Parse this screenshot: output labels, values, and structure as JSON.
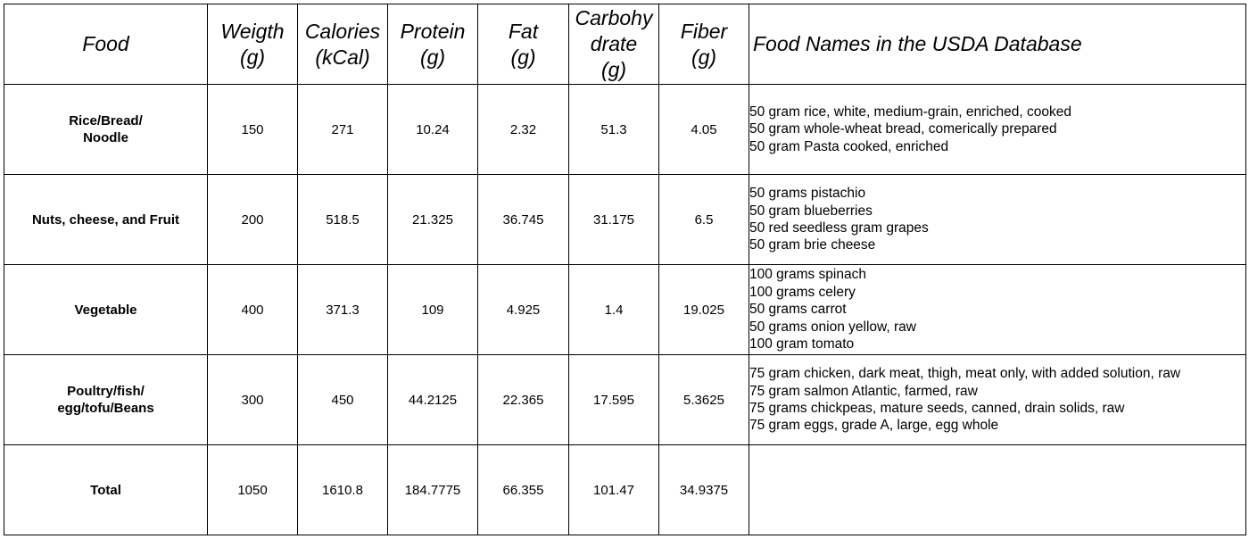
{
  "headers": {
    "food": "Food",
    "weight": "Weigth\n(g)",
    "calories": "Calories\n(kCal)",
    "protein": "Protein\n(g)",
    "fat": "Fat\n(g)",
    "carbohydrate": "Carbohy\ndrate\n(g)",
    "fiber": "Fiber\n(g)",
    "usda_names": "Food Names in the USDA Database"
  },
  "rows": [
    {
      "food": "Rice/Bread/\nNoodle",
      "weight": "150",
      "calories": "271",
      "protein": "10.24",
      "fat": "2.32",
      "carbohydrate": "51.3",
      "fiber": "4.05",
      "usda_names": [
        "50 gram rice, white, medium-grain, enriched, cooked",
        "50 gram whole-wheat bread, comerically prepared",
        "50 gram Pasta cooked, enriched"
      ]
    },
    {
      "food": "Nuts, cheese, and Fruit",
      "weight": "200",
      "calories": "518.5",
      "protein": "21.325",
      "fat": "36.745",
      "carbohydrate": "31.175",
      "fiber": "6.5",
      "usda_names": [
        "50 grams pistachio",
        "50 gram blueberries",
        "50 red seedless gram grapes",
        "50 gram brie cheese"
      ]
    },
    {
      "food": "Vegetable",
      "weight": "400",
      "calories": "371.3",
      "protein": "109",
      "fat": "4.925",
      "carbohydrate": "1.4",
      "fiber": "19.025",
      "usda_names": [
        "100 grams spinach",
        "100 grams celery",
        "50 grams carrot",
        "50 grams onion yellow, raw",
        "100 gram tomato"
      ]
    },
    {
      "food": "Poultry/fish/\negg/tofu/Beans",
      "weight": "300",
      "calories": "450",
      "protein": "44.2125",
      "fat": "22.365",
      "carbohydrate": "17.595",
      "fiber": "5.3625",
      "usda_names": [
        "75 gram chicken, dark meat, thigh, meat only, with added solution, raw",
        "75 gram salmon Atlantic, farmed, raw",
        "75 grams chickpeas, mature seeds, canned, drain solids, raw",
        "75 gram eggs, grade A, large, egg whole"
      ]
    }
  ],
  "total": {
    "food": "Total",
    "weight": "1050",
    "calories": "1610.8",
    "protein": "184.7775",
    "fat": "66.355",
    "carbohydrate": "101.47",
    "fiber": "34.9375"
  }
}
